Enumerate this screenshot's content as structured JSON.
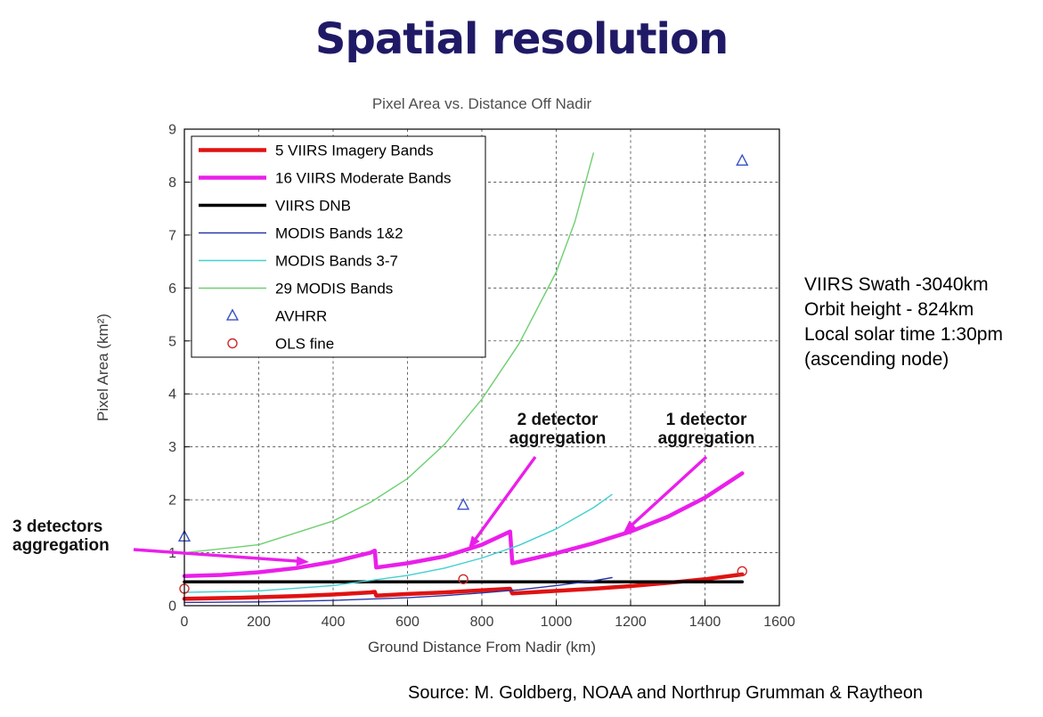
{
  "slide": {
    "title": "Spatial resolution",
    "source": "Source: M. Goldberg, NOAA and Northrup Grumman & Raytheon"
  },
  "info_box": {
    "lines": [
      "VIIRS Swath -3040km",
      "Orbit height - 824km",
      "Local solar time 1:30pm",
      "(ascending node)"
    ]
  },
  "chart_data": {
    "type": "line",
    "title": "Pixel Area vs. Distance Off Nadir",
    "xlabel": "Ground Distance From Nadir (km)",
    "ylabel": "Pixel Area (km²)",
    "xlim": [
      0,
      1600
    ],
    "ylim": [
      0,
      9
    ],
    "xticks": [
      0,
      200,
      400,
      600,
      800,
      1000,
      1200,
      1400,
      1600
    ],
    "yticks": [
      0,
      1,
      2,
      3,
      4,
      5,
      6,
      7,
      8,
      9
    ],
    "grid": "dashed",
    "legend_position": "upper-left",
    "series": [
      {
        "name": "5 VIIRS Imagery Bands",
        "color": "#e01212",
        "width": 4.5,
        "points": [
          [
            0,
            0.13
          ],
          [
            150,
            0.15
          ],
          [
            300,
            0.18
          ],
          [
            400,
            0.21
          ],
          [
            500,
            0.25
          ],
          [
            512,
            0.26
          ],
          [
            516,
            0.19
          ],
          [
            600,
            0.22
          ],
          [
            700,
            0.25
          ],
          [
            800,
            0.29
          ],
          [
            876,
            0.32
          ],
          [
            882,
            0.23
          ],
          [
            1000,
            0.28
          ],
          [
            1100,
            0.32
          ],
          [
            1200,
            0.37
          ],
          [
            1300,
            0.43
          ],
          [
            1400,
            0.5
          ],
          [
            1500,
            0.59
          ]
        ]
      },
      {
        "name": "16 VIIRS Moderate Bands",
        "color": "#ea1fea",
        "width": 4.5,
        "points": [
          [
            0,
            0.56
          ],
          [
            100,
            0.58
          ],
          [
            200,
            0.63
          ],
          [
            300,
            0.71
          ],
          [
            400,
            0.83
          ],
          [
            500,
            1.0
          ],
          [
            512,
            1.04
          ],
          [
            516,
            0.72
          ],
          [
            600,
            0.8
          ],
          [
            700,
            0.93
          ],
          [
            800,
            1.15
          ],
          [
            876,
            1.4
          ],
          [
            882,
            0.8
          ],
          [
            950,
            0.91
          ],
          [
            1000,
            0.99
          ],
          [
            1100,
            1.18
          ],
          [
            1200,
            1.4
          ],
          [
            1300,
            1.68
          ],
          [
            1400,
            2.04
          ],
          [
            1500,
            2.5
          ]
        ]
      },
      {
        "name": "VIIRS DNB",
        "color": "#000000",
        "width": 3.5,
        "points": [
          [
            0,
            0.45
          ],
          [
            1500,
            0.45
          ]
        ]
      },
      {
        "name": "MODIS Bands 1&2",
        "color": "#2a35a8",
        "width": 1.4,
        "points": [
          [
            0,
            0.06
          ],
          [
            200,
            0.07
          ],
          [
            400,
            0.1
          ],
          [
            600,
            0.15
          ],
          [
            700,
            0.19
          ],
          [
            800,
            0.24
          ],
          [
            900,
            0.3
          ],
          [
            1000,
            0.38
          ],
          [
            1100,
            0.47
          ],
          [
            1150,
            0.53
          ]
        ]
      },
      {
        "name": "MODIS Bands 3-7",
        "color": "#41d0cf",
        "width": 1.4,
        "points": [
          [
            0,
            0.25
          ],
          [
            200,
            0.28
          ],
          [
            400,
            0.38
          ],
          [
            600,
            0.57
          ],
          [
            700,
            0.71
          ],
          [
            800,
            0.9
          ],
          [
            900,
            1.14
          ],
          [
            1000,
            1.45
          ],
          [
            1100,
            1.85
          ],
          [
            1150,
            2.1
          ]
        ]
      },
      {
        "name": "29 MODIS Bands",
        "color": "#6ecf70",
        "width": 1.4,
        "points": [
          [
            0,
            1.0
          ],
          [
            200,
            1.15
          ],
          [
            400,
            1.6
          ],
          [
            500,
            1.95
          ],
          [
            600,
            2.4
          ],
          [
            700,
            3.05
          ],
          [
            800,
            3.9
          ],
          [
            900,
            4.95
          ],
          [
            1000,
            6.3
          ],
          [
            1050,
            7.25
          ],
          [
            1100,
            8.55
          ]
        ]
      }
    ],
    "marker_series": [
      {
        "name": "AVHRR",
        "marker": "triangle",
        "color": "#3a50c2",
        "points": [
          [
            0,
            1.3
          ],
          [
            750,
            1.9
          ],
          [
            1500,
            8.4
          ]
        ]
      },
      {
        "name": "OLS fine",
        "marker": "circle",
        "color": "#cf2b2b",
        "points": [
          [
            0,
            0.32
          ],
          [
            750,
            0.5
          ],
          [
            1500,
            0.65
          ]
        ]
      }
    ],
    "annotations": [
      {
        "label": "3 detectors aggregation",
        "lines": [
          "3 detectors",
          "aggregation"
        ]
      },
      {
        "label": "2 detector aggregation",
        "lines": [
          "2 detector",
          "aggregation"
        ]
      },
      {
        "label": "1 detector aggregation",
        "lines": [
          "1 detector",
          "aggregation"
        ]
      }
    ],
    "annotation_color": "#ea1fea"
  }
}
